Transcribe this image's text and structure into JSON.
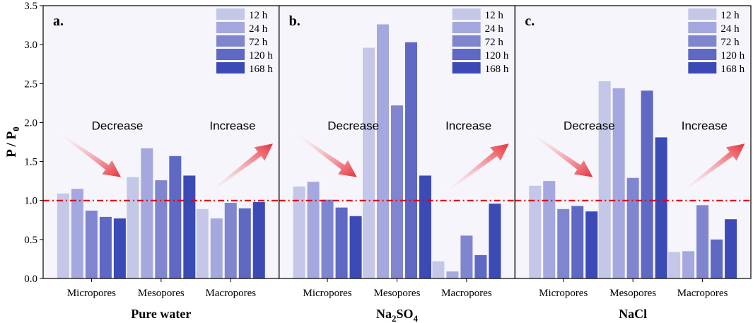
{
  "chart_data": {
    "type": "bar",
    "ylabel": "P / P",
    "ylabel_subscript": "0",
    "ylim": [
      0,
      3.5
    ],
    "yticks": [
      "0.0",
      "0.5",
      "1.0",
      "1.5",
      "2.0",
      "2.5",
      "3.0",
      "3.5"
    ],
    "reference_line": 1.0,
    "categories": [
      "Micropores",
      "Mesopores",
      "Macropores"
    ],
    "legend": [
      "12 h",
      "24 h",
      "72 h",
      "120 h",
      "168 h"
    ],
    "colors": [
      "#c4c7e8",
      "#a4a8de",
      "#7f86cf",
      "#5f68c3",
      "#3c4ab6"
    ],
    "reference_color": "#e0000f",
    "arrow_color": "#e8303a",
    "panels": [
      {
        "letter": "a.",
        "title": "Pure water",
        "series": [
          {
            "name": "12 h",
            "values": [
              1.09,
              1.3,
              0.89
            ]
          },
          {
            "name": "24 h",
            "values": [
              1.15,
              1.67,
              0.77
            ]
          },
          {
            "name": "72 h",
            "values": [
              0.87,
              1.26,
              0.97
            ]
          },
          {
            "name": "120 h",
            "values": [
              0.79,
              1.57,
              0.9
            ]
          },
          {
            "name": "168 h",
            "values": [
              0.77,
              1.32,
              0.98
            ]
          }
        ],
        "annotations": [
          "Decrease",
          "Increase"
        ]
      },
      {
        "letter": "b.",
        "title_parts": [
          "Na",
          "2",
          "SO",
          "4"
        ],
        "series": [
          {
            "name": "12 h",
            "values": [
              1.18,
              2.96,
              0.22
            ]
          },
          {
            "name": "24 h",
            "values": [
              1.24,
              3.26,
              0.09
            ]
          },
          {
            "name": "72 h",
            "values": [
              1.01,
              2.22,
              0.55
            ]
          },
          {
            "name": "120 h",
            "values": [
              0.91,
              3.03,
              0.3
            ]
          },
          {
            "name": "168 h",
            "values": [
              0.8,
              1.32,
              0.96
            ]
          }
        ],
        "annotations": [
          "Decrease",
          "Increase"
        ]
      },
      {
        "letter": "c.",
        "title": "NaCl",
        "series": [
          {
            "name": "12 h",
            "values": [
              1.19,
              2.53,
              0.34
            ]
          },
          {
            "name": "24 h",
            "values": [
              1.25,
              2.44,
              0.35
            ]
          },
          {
            "name": "72 h",
            "values": [
              0.89,
              1.29,
              0.94
            ]
          },
          {
            "name": "120 h",
            "values": [
              0.93,
              2.41,
              0.5
            ]
          },
          {
            "name": "168 h",
            "values": [
              0.86,
              1.81,
              0.76
            ]
          }
        ],
        "annotations": [
          "Decrease",
          "Increase"
        ]
      }
    ]
  }
}
